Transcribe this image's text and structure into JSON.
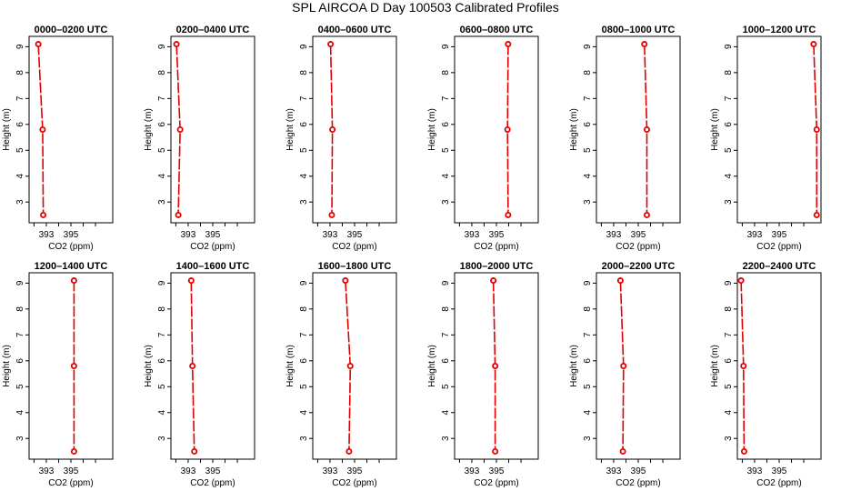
{
  "figure": {
    "title": "SPL AIRCOA D  Day 100503  Calibrated Profiles"
  },
  "colors": {
    "profile": "#e00000",
    "axes": "#000000",
    "background": "#ffffff"
  },
  "chart_data": [
    {
      "type": "line",
      "title": "0000–0200 UTC",
      "xlabel": "CO2 (ppm)",
      "ylabel": "Height (m)",
      "xlim": [
        391.6,
        398.4
      ],
      "ylim": [
        2.2,
        9.4
      ],
      "xticks": [
        393,
        395
      ],
      "yticks": [
        3,
        4,
        5,
        6,
        7,
        8,
        9
      ],
      "grid": false,
      "legend": "none",
      "points": [
        {
          "x": 392.35,
          "y": 9.1
        },
        {
          "x": 392.7,
          "y": 5.8
        },
        {
          "x": 392.75,
          "y": 2.5
        }
      ]
    },
    {
      "type": "line",
      "title": "0200–0400 UTC",
      "xlabel": "CO2 (ppm)",
      "ylabel": "Height (m)",
      "xlim": [
        391.6,
        398.4
      ],
      "ylim": [
        2.2,
        9.4
      ],
      "xticks": [
        393,
        395
      ],
      "yticks": [
        3,
        4,
        5,
        6,
        7,
        8,
        9
      ],
      "grid": false,
      "legend": "none",
      "points": [
        {
          "x": 392.05,
          "y": 9.1
        },
        {
          "x": 392.35,
          "y": 5.8
        },
        {
          "x": 392.2,
          "y": 2.5
        }
      ]
    },
    {
      "type": "line",
      "title": "0400–0600 UTC",
      "xlabel": "CO2 (ppm)",
      "ylabel": "Height (m)",
      "xlim": [
        391.6,
        398.4
      ],
      "ylim": [
        2.2,
        9.4
      ],
      "xticks": [
        393,
        395
      ],
      "yticks": [
        3,
        4,
        5,
        6,
        7,
        8,
        9
      ],
      "grid": false,
      "legend": "none",
      "points": [
        {
          "x": 393.05,
          "y": 9.1
        },
        {
          "x": 393.2,
          "y": 5.8
        },
        {
          "x": 393.15,
          "y": 2.5
        }
      ]
    },
    {
      "type": "line",
      "title": "0600–0800 UTC",
      "xlabel": "CO2 (ppm)",
      "ylabel": "Height (m)",
      "xlim": [
        391.6,
        398.4
      ],
      "ylim": [
        2.2,
        9.4
      ],
      "xticks": [
        393,
        395
      ],
      "yticks": [
        3,
        4,
        5,
        6,
        7,
        8,
        9
      ],
      "grid": false,
      "legend": "none",
      "points": [
        {
          "x": 395.95,
          "y": 9.1
        },
        {
          "x": 395.9,
          "y": 5.8
        },
        {
          "x": 395.95,
          "y": 2.5
        }
      ]
    },
    {
      "type": "line",
      "title": "0800–1000 UTC",
      "xlabel": "CO2 (ppm)",
      "ylabel": "Height (m)",
      "xlim": [
        391.6,
        398.4
      ],
      "ylim": [
        2.2,
        9.4
      ],
      "xticks": [
        393,
        395
      ],
      "yticks": [
        3,
        4,
        5,
        6,
        7,
        8,
        9
      ],
      "grid": false,
      "legend": "none",
      "points": [
        {
          "x": 395.5,
          "y": 9.1
        },
        {
          "x": 395.7,
          "y": 5.8
        },
        {
          "x": 395.7,
          "y": 2.5
        }
      ]
    },
    {
      "type": "line",
      "title": "1000–1200 UTC",
      "xlabel": "CO2 (ppm)",
      "ylabel": "Height (m)",
      "xlim": [
        391.6,
        398.4
      ],
      "ylim": [
        2.2,
        9.4
      ],
      "xticks": [
        393,
        395
      ],
      "yticks": [
        3,
        4,
        5,
        6,
        7,
        8,
        9
      ],
      "grid": false,
      "legend": "none",
      "points": [
        {
          "x": 397.8,
          "y": 9.1
        },
        {
          "x": 398.05,
          "y": 5.8
        },
        {
          "x": 398.05,
          "y": 2.5
        }
      ]
    },
    {
      "type": "line",
      "title": "1200–1400 UTC",
      "xlabel": "CO2 (ppm)",
      "ylabel": "Height (m)",
      "xlim": [
        391.6,
        398.4
      ],
      "ylim": [
        2.2,
        9.4
      ],
      "xticks": [
        393,
        395
      ],
      "yticks": [
        3,
        4,
        5,
        6,
        7,
        8,
        9
      ],
      "grid": false,
      "legend": "none",
      "points": [
        {
          "x": 395.25,
          "y": 9.1
        },
        {
          "x": 395.25,
          "y": 5.8
        },
        {
          "x": 395.25,
          "y": 2.5
        }
      ]
    },
    {
      "type": "line",
      "title": "1400–1600 UTC",
      "xlabel": "CO2 (ppm)",
      "ylabel": "Height (m)",
      "xlim": [
        391.6,
        398.4
      ],
      "ylim": [
        2.2,
        9.4
      ],
      "xticks": [
        393,
        395
      ],
      "yticks": [
        3,
        4,
        5,
        6,
        7,
        8,
        9
      ],
      "grid": false,
      "legend": "none",
      "points": [
        {
          "x": 393.25,
          "y": 9.1
        },
        {
          "x": 393.35,
          "y": 5.8
        },
        {
          "x": 393.5,
          "y": 2.5
        }
      ]
    },
    {
      "type": "line",
      "title": "1600–1800 UTC",
      "xlabel": "CO2 (ppm)",
      "ylabel": "Height (m)",
      "xlim": [
        391.6,
        398.4
      ],
      "ylim": [
        2.2,
        9.4
      ],
      "xticks": [
        393,
        395
      ],
      "yticks": [
        3,
        4,
        5,
        6,
        7,
        8,
        9
      ],
      "grid": false,
      "legend": "none",
      "points": [
        {
          "x": 394.25,
          "y": 9.1
        },
        {
          "x": 394.65,
          "y": 5.8
        },
        {
          "x": 394.55,
          "y": 2.5
        }
      ]
    },
    {
      "type": "line",
      "title": "1800–2000 UTC",
      "xlabel": "CO2 (ppm)",
      "ylabel": "Height (m)",
      "xlim": [
        391.6,
        398.4
      ],
      "ylim": [
        2.2,
        9.4
      ],
      "xticks": [
        393,
        395
      ],
      "yticks": [
        3,
        4,
        5,
        6,
        7,
        8,
        9
      ],
      "grid": false,
      "legend": "none",
      "points": [
        {
          "x": 394.75,
          "y": 9.1
        },
        {
          "x": 394.9,
          "y": 5.8
        },
        {
          "x": 394.9,
          "y": 2.5
        }
      ]
    },
    {
      "type": "line",
      "title": "2000–2200 UTC",
      "xlabel": "CO2 (ppm)",
      "ylabel": "Height (m)",
      "xlim": [
        391.6,
        398.4
      ],
      "ylim": [
        2.2,
        9.4
      ],
      "xticks": [
        393,
        395
      ],
      "yticks": [
        3,
        4,
        5,
        6,
        7,
        8,
        9
      ],
      "grid": false,
      "legend": "none",
      "points": [
        {
          "x": 393.55,
          "y": 9.1
        },
        {
          "x": 393.8,
          "y": 5.8
        },
        {
          "x": 393.75,
          "y": 2.5
        }
      ]
    },
    {
      "type": "line",
      "title": "2200–2400 UTC",
      "xlabel": "CO2 (ppm)",
      "ylabel": "Height (m)",
      "xlim": [
        391.6,
        398.4
      ],
      "ylim": [
        2.2,
        9.4
      ],
      "xticks": [
        393,
        395
      ],
      "yticks": [
        3,
        4,
        5,
        6,
        7,
        8,
        9
      ],
      "grid": false,
      "legend": "none",
      "points": [
        {
          "x": 391.9,
          "y": 9.1
        },
        {
          "x": 392.1,
          "y": 5.8
        },
        {
          "x": 392.15,
          "y": 2.5
        }
      ]
    }
  ]
}
